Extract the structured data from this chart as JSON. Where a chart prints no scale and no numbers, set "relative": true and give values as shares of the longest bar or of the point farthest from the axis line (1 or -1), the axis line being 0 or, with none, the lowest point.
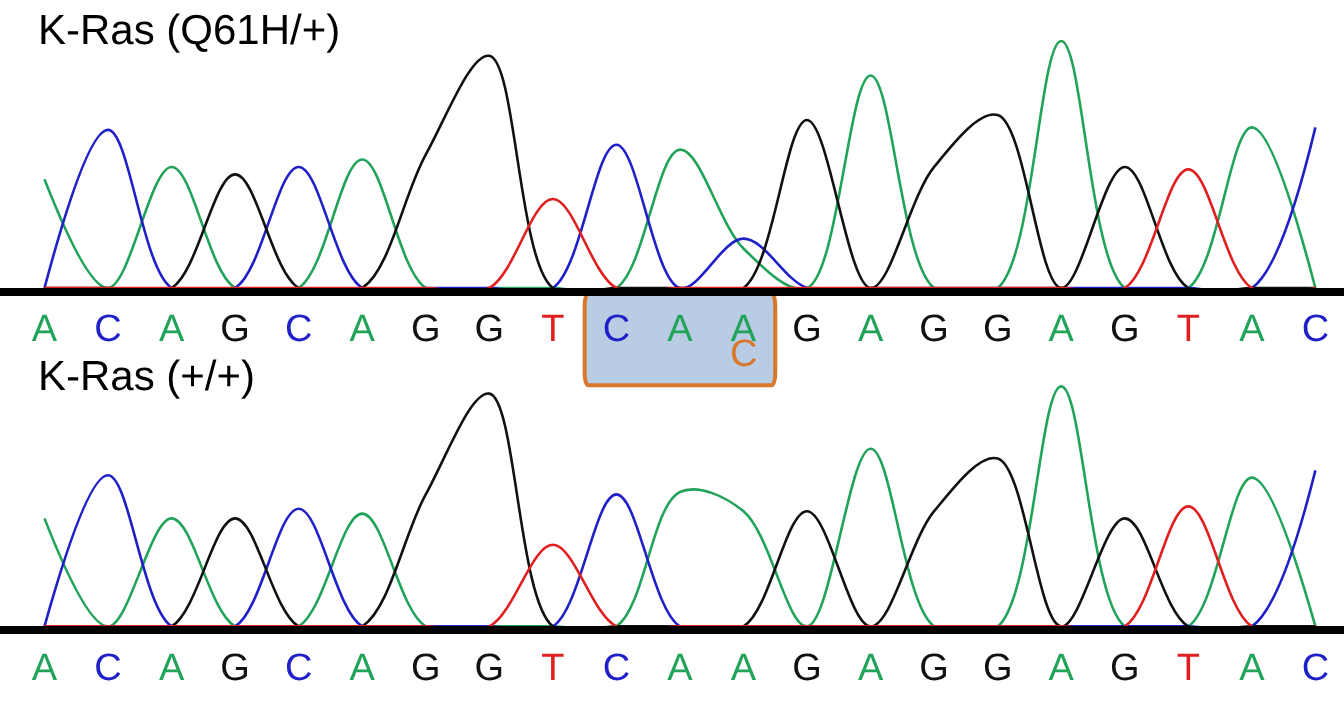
{
  "chart_data": [
    {
      "type": "line",
      "title": "K-Ras (Q61H/+)",
      "relative": true,
      "categories": [
        "A",
        "C",
        "A",
        "G",
        "C",
        "A",
        "G",
        "G",
        "T",
        "C",
        "A",
        "A",
        "G",
        "A",
        "G",
        "G",
        "A",
        "G",
        "T",
        "A",
        "C"
      ],
      "series": [
        {
          "color": "#22a35a",
          "values": [
            0.44,
            0,
            0.49,
            0,
            0,
            0.52,
            0,
            0,
            0,
            0,
            0.56,
            0.16,
            0,
            0.86,
            0,
            0,
            1,
            0,
            0,
            0.65,
            0
          ]
        },
        {
          "color": "#2020c8",
          "values": [
            0,
            0.64,
            0,
            0,
            0.49,
            0,
            0,
            0,
            0,
            0.58,
            0,
            0.2,
            0,
            0,
            0,
            0,
            0,
            0,
            0,
            0,
            0.65
          ]
        },
        {
          "color": "#111111",
          "values": [
            0,
            0,
            0,
            0.46,
            0,
            0,
            0.54,
            0.94,
            0,
            0,
            0,
            0,
            0.68,
            0,
            0.49,
            0.7,
            0,
            0.49,
            0,
            0,
            0
          ]
        },
        {
          "color": "#e02020",
          "values": [
            0,
            0,
            0,
            0,
            0,
            0,
            0,
            0,
            0.36,
            0,
            0,
            0,
            0,
            0,
            0,
            0,
            0,
            0,
            0.48,
            0,
            0
          ]
        }
      ],
      "annotations": [
        "C"
      ]
    },
    {
      "type": "line",
      "title": "K-Ras (+/+)",
      "relative": true,
      "categories": [
        "A",
        "C",
        "A",
        "G",
        "C",
        "A",
        "G",
        "G",
        "T",
        "C",
        "A",
        "A",
        "G",
        "A",
        "G",
        "G",
        "A",
        "G",
        "T",
        "A",
        "C"
      ],
      "series": [
        {
          "color": "#22a35a",
          "values": [
            0.45,
            0,
            0.45,
            0,
            0,
            0.47,
            0,
            0,
            0,
            0,
            0.56,
            0.48,
            0,
            0.74,
            0,
            0,
            1,
            0,
            0,
            0.62,
            0
          ]
        },
        {
          "color": "#2020c8",
          "values": [
            0,
            0.63,
            0,
            0,
            0.49,
            0,
            0,
            0,
            0,
            0.55,
            0,
            0,
            0,
            0,
            0,
            0,
            0,
            0,
            0,
            0,
            0.65
          ]
        },
        {
          "color": "#111111",
          "values": [
            0,
            0,
            0,
            0.45,
            0,
            0,
            0.55,
            0.97,
            0,
            0,
            0,
            0,
            0.48,
            0,
            0.48,
            0.7,
            0,
            0.45,
            0,
            0,
            0
          ]
        },
        {
          "color": "#e02020",
          "values": [
            0,
            0,
            0,
            0,
            0,
            0,
            0,
            0,
            0.34,
            0,
            0,
            0,
            0,
            0,
            0,
            0,
            0,
            0,
            0.5,
            0,
            0
          ]
        }
      ]
    }
  ]
}
